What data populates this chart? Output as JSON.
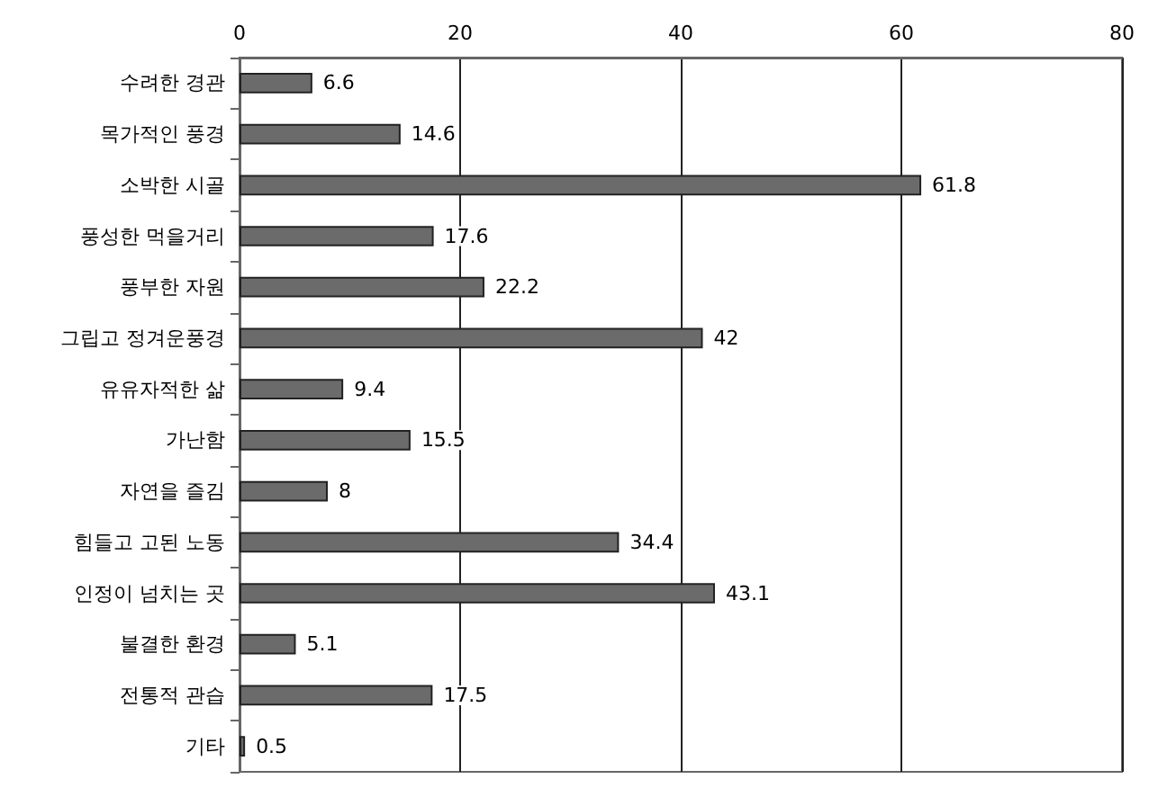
{
  "chart_data": {
    "type": "bar",
    "orientation": "horizontal",
    "categories": [
      "수려한 경관",
      "목가적인 풍경",
      "소박한 시골",
      "풍성한 먹을거리",
      "풍부한 자원",
      "그립고 정겨운풍경",
      "유유자적한 삶",
      "가난함",
      "자연을 즐김",
      "힘들고 고된 노동",
      "인정이 넘치는 곳",
      "불결한 환경",
      "전통적 관습",
      "기타"
    ],
    "values": [
      6.6,
      14.6,
      61.8,
      17.6,
      22.2,
      42,
      9.4,
      15.5,
      8,
      34.4,
      43.1,
      5.1,
      17.5,
      0.5
    ],
    "color": "#6b6b6b",
    "xlim": [
      0,
      80
    ],
    "xticks": [
      0,
      20,
      40,
      60,
      80
    ],
    "grid": "x",
    "data_labels": true
  }
}
